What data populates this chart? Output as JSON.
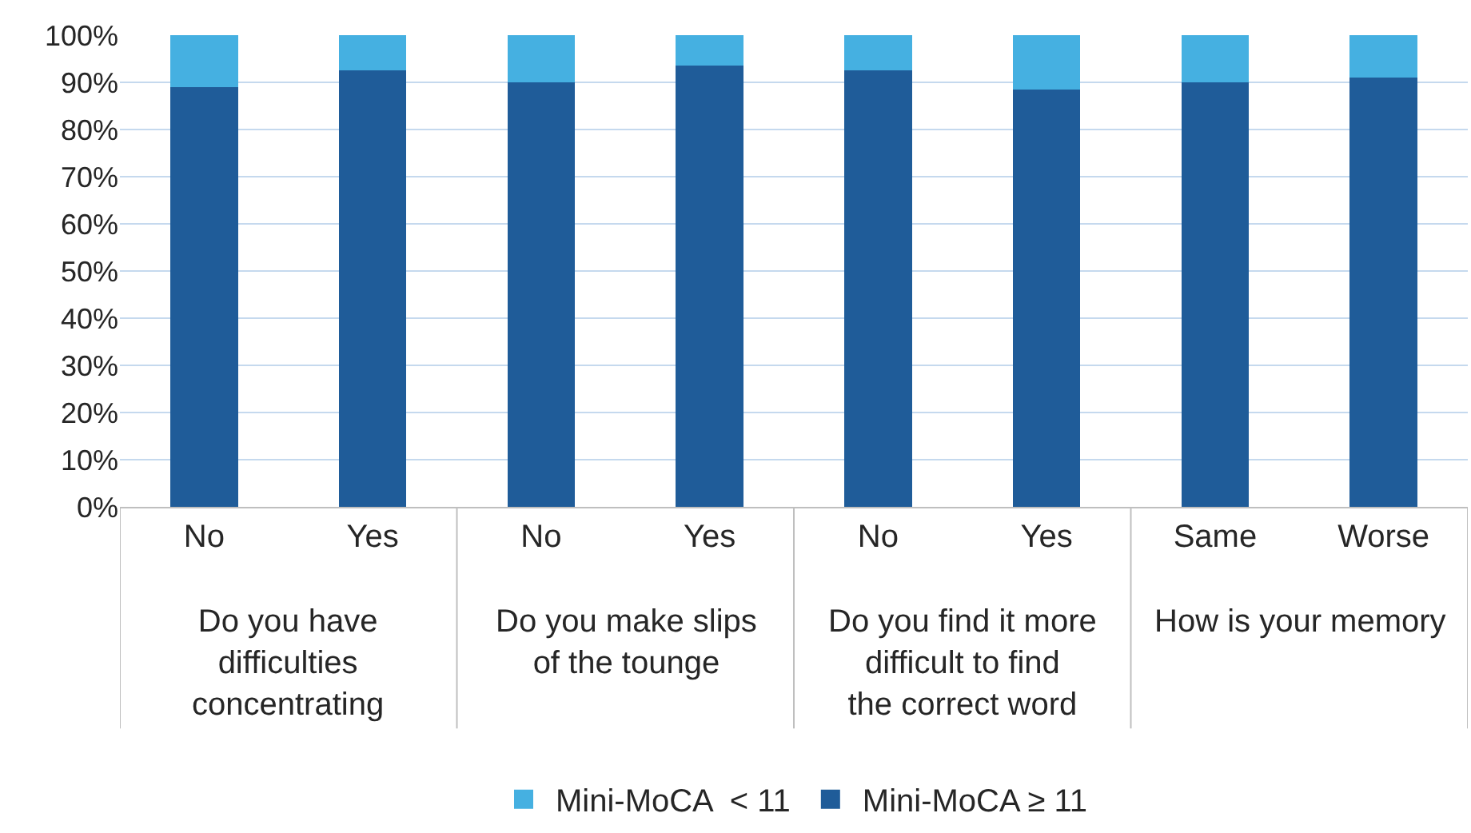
{
  "chart_data": {
    "type": "bar",
    "stacked": true,
    "categories": [
      "No",
      "Yes",
      "No",
      "Yes",
      "No",
      "Yes",
      "Same",
      "Worse"
    ],
    "series": [
      {
        "name": "Mini-MoCA ≥ 11",
        "color": "#1f5c99",
        "values": [
          89,
          92.5,
          90,
          93.5,
          92.5,
          88.5,
          90,
          91
        ]
      },
      {
        "name": "Mini-MoCA  < 11",
        "color": "#45b0e1",
        "values": [
          11,
          7.5,
          10,
          6.5,
          7.5,
          11.5,
          10,
          9
        ]
      }
    ],
    "annotations": [
      "Do you have difficulties concentrating",
      "Do you make slips of the tounge",
      "Do you find it more difficult to find the correct word",
      "How is your memory"
    ],
    "ylim": [
      0,
      100
    ],
    "yticks": [
      {
        "value": 0,
        "label": "0%"
      },
      {
        "value": 10,
        "label": "10%"
      },
      {
        "value": 20,
        "label": "20%"
      },
      {
        "value": 30,
        "label": "30%"
      },
      {
        "value": 40,
        "label": "40%"
      },
      {
        "value": 50,
        "label": "50%"
      },
      {
        "value": 60,
        "label": "60%"
      },
      {
        "value": 70,
        "label": "70%"
      },
      {
        "value": 80,
        "label": "80%"
      },
      {
        "value": 90,
        "label": "90%"
      },
      {
        "value": 100,
        "label": "100%"
      }
    ],
    "grid": "y",
    "legend": "bottom"
  }
}
